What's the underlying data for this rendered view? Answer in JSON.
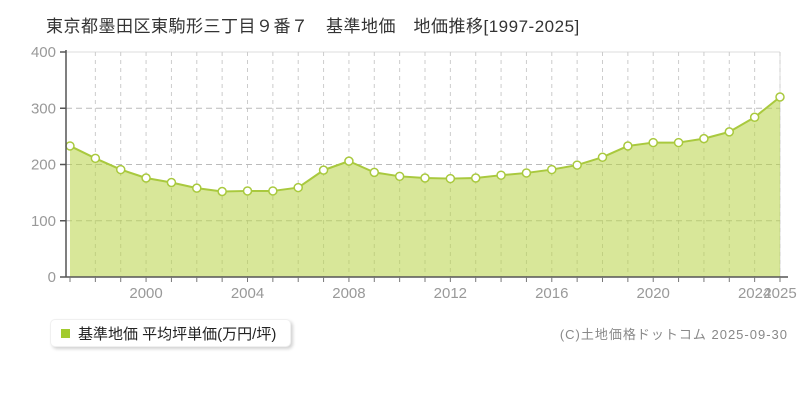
{
  "title": "東京都墨田区東駒形三丁目９番７　基準地価　地価推移[1997-2025]",
  "legend": {
    "label": "基準地価 平均坪単価(万円/坪)",
    "marker_color": "#a2cb2e"
  },
  "copyright": "(C)土地価格ドットコム 2025-09-30",
  "colors": {
    "line": "#a9c93e",
    "area_fill_rgba": "rgba(184, 212, 70, 0.55)",
    "marker_fill": "#ffffff",
    "grid_dashed": "#bbbbbb",
    "grid_vertical": "#cccccc",
    "axis": "#555555",
    "tick_label": "#999999",
    "plot_border_light": "#dddddd"
  },
  "chart_data": {
    "type": "area",
    "title": "東京都墨田区東駒形三丁目９番７ 基準地価 地価推移[1997-2025]",
    "x": [
      1997,
      1998,
      1999,
      2000,
      2001,
      2002,
      2003,
      2004,
      2005,
      2006,
      2007,
      2008,
      2009,
      2010,
      2011,
      2012,
      2013,
      2014,
      2015,
      2016,
      2017,
      2018,
      2019,
      2020,
      2021,
      2022,
      2023,
      2024,
      2025
    ],
    "values": [
      233,
      211,
      191,
      176,
      168,
      158,
      152,
      153,
      153,
      159,
      190,
      206,
      186,
      179,
      176,
      175,
      176,
      181,
      185,
      191,
      199,
      213,
      233,
      239,
      239,
      246,
      258,
      284,
      320
    ],
    "series_name": "基準地価 平均坪単価(万円/坪)",
    "xlabel": "",
    "ylabel": "万円/坪",
    "ylim": [
      0,
      400
    ],
    "yticks": [
      0,
      100,
      200,
      300,
      400
    ],
    "xtick_labels": [
      2000,
      2004,
      2008,
      2012,
      2016,
      2020,
      2024,
      2025
    ],
    "grid": true,
    "legend_position": "bottom-left"
  }
}
